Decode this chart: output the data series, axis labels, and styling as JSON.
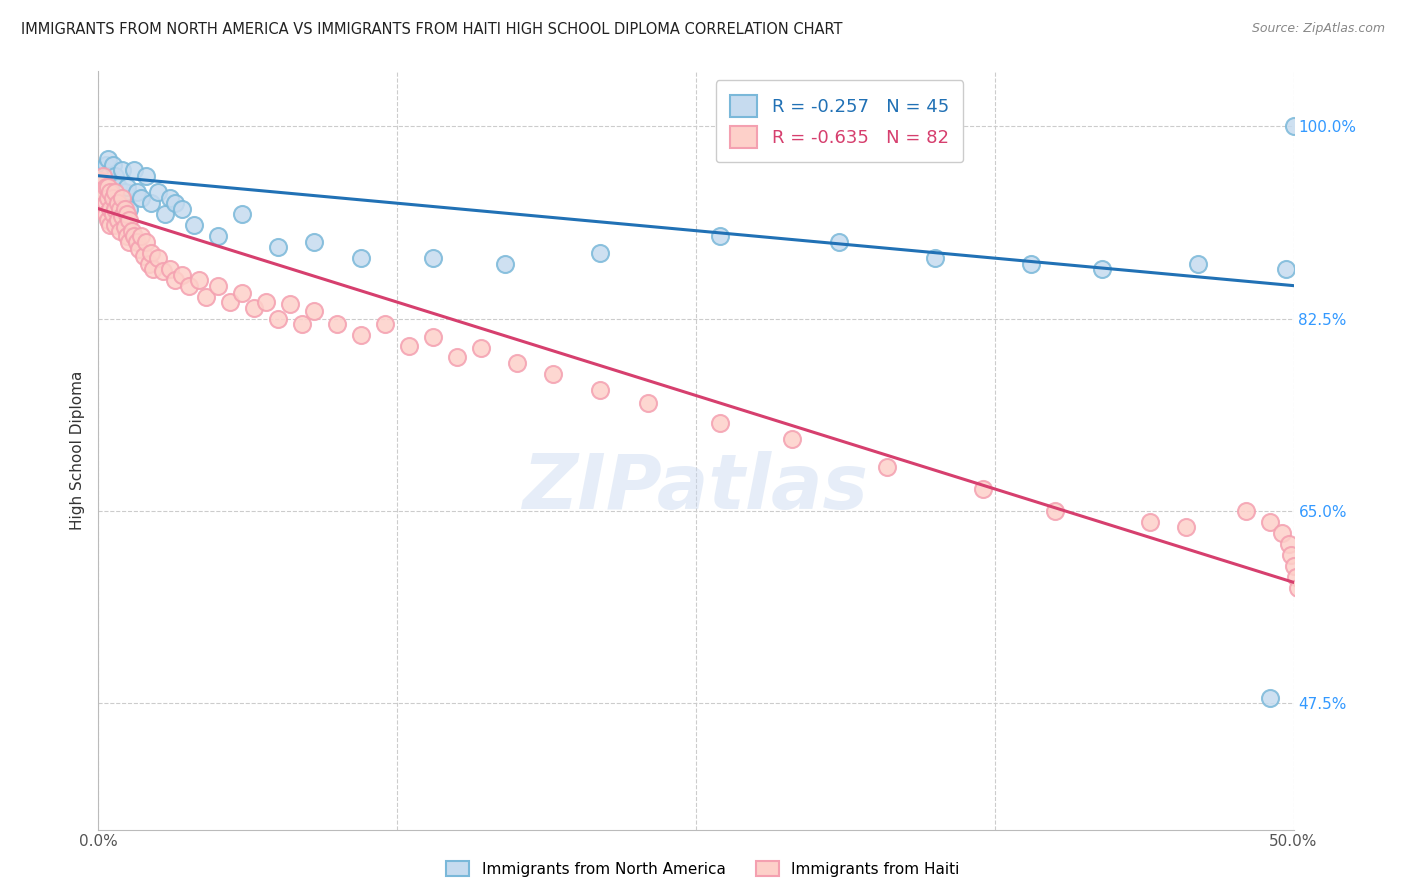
{
  "title": "IMMIGRANTS FROM NORTH AMERICA VS IMMIGRANTS FROM HAITI HIGH SCHOOL DIPLOMA CORRELATION CHART",
  "source": "Source: ZipAtlas.com",
  "ylabel": "High School Diploma",
  "xmin": 0.0,
  "xmax": 0.5,
  "ymin": 0.36,
  "ymax": 1.05,
  "yticks": [
    1.0,
    0.825,
    0.65,
    0.475
  ],
  "ytick_labels": [
    "100.0%",
    "82.5%",
    "65.0%",
    "47.5%"
  ],
  "xticks": [
    0.0,
    0.125,
    0.25,
    0.375,
    0.5
  ],
  "xtick_labels": [
    "0.0%",
    "",
    "",
    "",
    "50.0%"
  ],
  "legend_label1": "R = -0.257   N = 45",
  "legend_label2": "R = -0.635   N = 82",
  "bottom_legend1": "Immigrants from North America",
  "bottom_legend2": "Immigrants from Haiti",
  "blue_color": "#7ab8d9",
  "blue_fill": "#c6dbef",
  "blue_line": "#2171b5",
  "pink_color": "#f4a0b0",
  "pink_fill": "#fdd0c9",
  "pink_line": "#d63f6e",
  "background_color": "#ffffff",
  "blue_trend_x0": 0.0,
  "blue_trend_y0": 0.955,
  "blue_trend_x1": 0.5,
  "blue_trend_y1": 0.855,
  "pink_trend_x0": 0.0,
  "pink_trend_y0": 0.925,
  "pink_trend_x1": 0.5,
  "pink_trend_y1": 0.585,
  "blue_x": [
    0.001,
    0.002,
    0.003,
    0.004,
    0.004,
    0.005,
    0.005,
    0.006,
    0.006,
    0.007,
    0.007,
    0.008,
    0.009,
    0.01,
    0.011,
    0.012,
    0.013,
    0.015,
    0.016,
    0.018,
    0.02,
    0.022,
    0.025,
    0.028,
    0.03,
    0.032,
    0.035,
    0.04,
    0.05,
    0.06,
    0.075,
    0.09,
    0.11,
    0.14,
    0.17,
    0.21,
    0.26,
    0.31,
    0.35,
    0.39,
    0.42,
    0.46,
    0.49,
    0.497,
    0.5
  ],
  "blue_y": [
    0.955,
    0.96,
    0.965,
    0.97,
    0.955,
    0.95,
    0.94,
    0.965,
    0.945,
    0.955,
    0.935,
    0.945,
    0.93,
    0.96,
    0.94,
    0.945,
    0.925,
    0.96,
    0.94,
    0.935,
    0.955,
    0.93,
    0.94,
    0.92,
    0.935,
    0.93,
    0.925,
    0.91,
    0.9,
    0.92,
    0.89,
    0.895,
    0.88,
    0.88,
    0.875,
    0.885,
    0.9,
    0.895,
    0.88,
    0.875,
    0.87,
    0.875,
    0.48,
    0.87,
    1.0
  ],
  "pink_x": [
    0.001,
    0.002,
    0.002,
    0.003,
    0.003,
    0.003,
    0.004,
    0.004,
    0.004,
    0.005,
    0.005,
    0.005,
    0.006,
    0.006,
    0.007,
    0.007,
    0.007,
    0.008,
    0.008,
    0.009,
    0.009,
    0.01,
    0.01,
    0.011,
    0.011,
    0.012,
    0.012,
    0.013,
    0.013,
    0.014,
    0.015,
    0.016,
    0.017,
    0.018,
    0.019,
    0.02,
    0.021,
    0.022,
    0.023,
    0.025,
    0.027,
    0.03,
    0.032,
    0.035,
    0.038,
    0.042,
    0.045,
    0.05,
    0.055,
    0.06,
    0.065,
    0.07,
    0.075,
    0.08,
    0.085,
    0.09,
    0.1,
    0.11,
    0.12,
    0.13,
    0.14,
    0.15,
    0.16,
    0.175,
    0.19,
    0.21,
    0.23,
    0.26,
    0.29,
    0.33,
    0.37,
    0.4,
    0.44,
    0.455,
    0.48,
    0.49,
    0.495,
    0.498,
    0.499,
    0.5,
    0.501,
    0.502
  ],
  "pink_y": [
    0.95,
    0.94,
    0.955,
    0.945,
    0.93,
    0.92,
    0.945,
    0.935,
    0.915,
    0.94,
    0.925,
    0.91,
    0.935,
    0.92,
    0.94,
    0.925,
    0.91,
    0.93,
    0.915,
    0.925,
    0.905,
    0.935,
    0.918,
    0.925,
    0.908,
    0.92,
    0.9,
    0.915,
    0.895,
    0.905,
    0.9,
    0.895,
    0.888,
    0.9,
    0.882,
    0.895,
    0.875,
    0.885,
    0.87,
    0.88,
    0.868,
    0.87,
    0.86,
    0.865,
    0.855,
    0.86,
    0.845,
    0.855,
    0.84,
    0.848,
    0.835,
    0.84,
    0.825,
    0.838,
    0.82,
    0.832,
    0.82,
    0.81,
    0.82,
    0.8,
    0.808,
    0.79,
    0.798,
    0.785,
    0.775,
    0.76,
    0.748,
    0.73,
    0.715,
    0.69,
    0.67,
    0.65,
    0.64,
    0.635,
    0.65,
    0.64,
    0.63,
    0.62,
    0.61,
    0.6,
    0.59,
    0.58
  ]
}
